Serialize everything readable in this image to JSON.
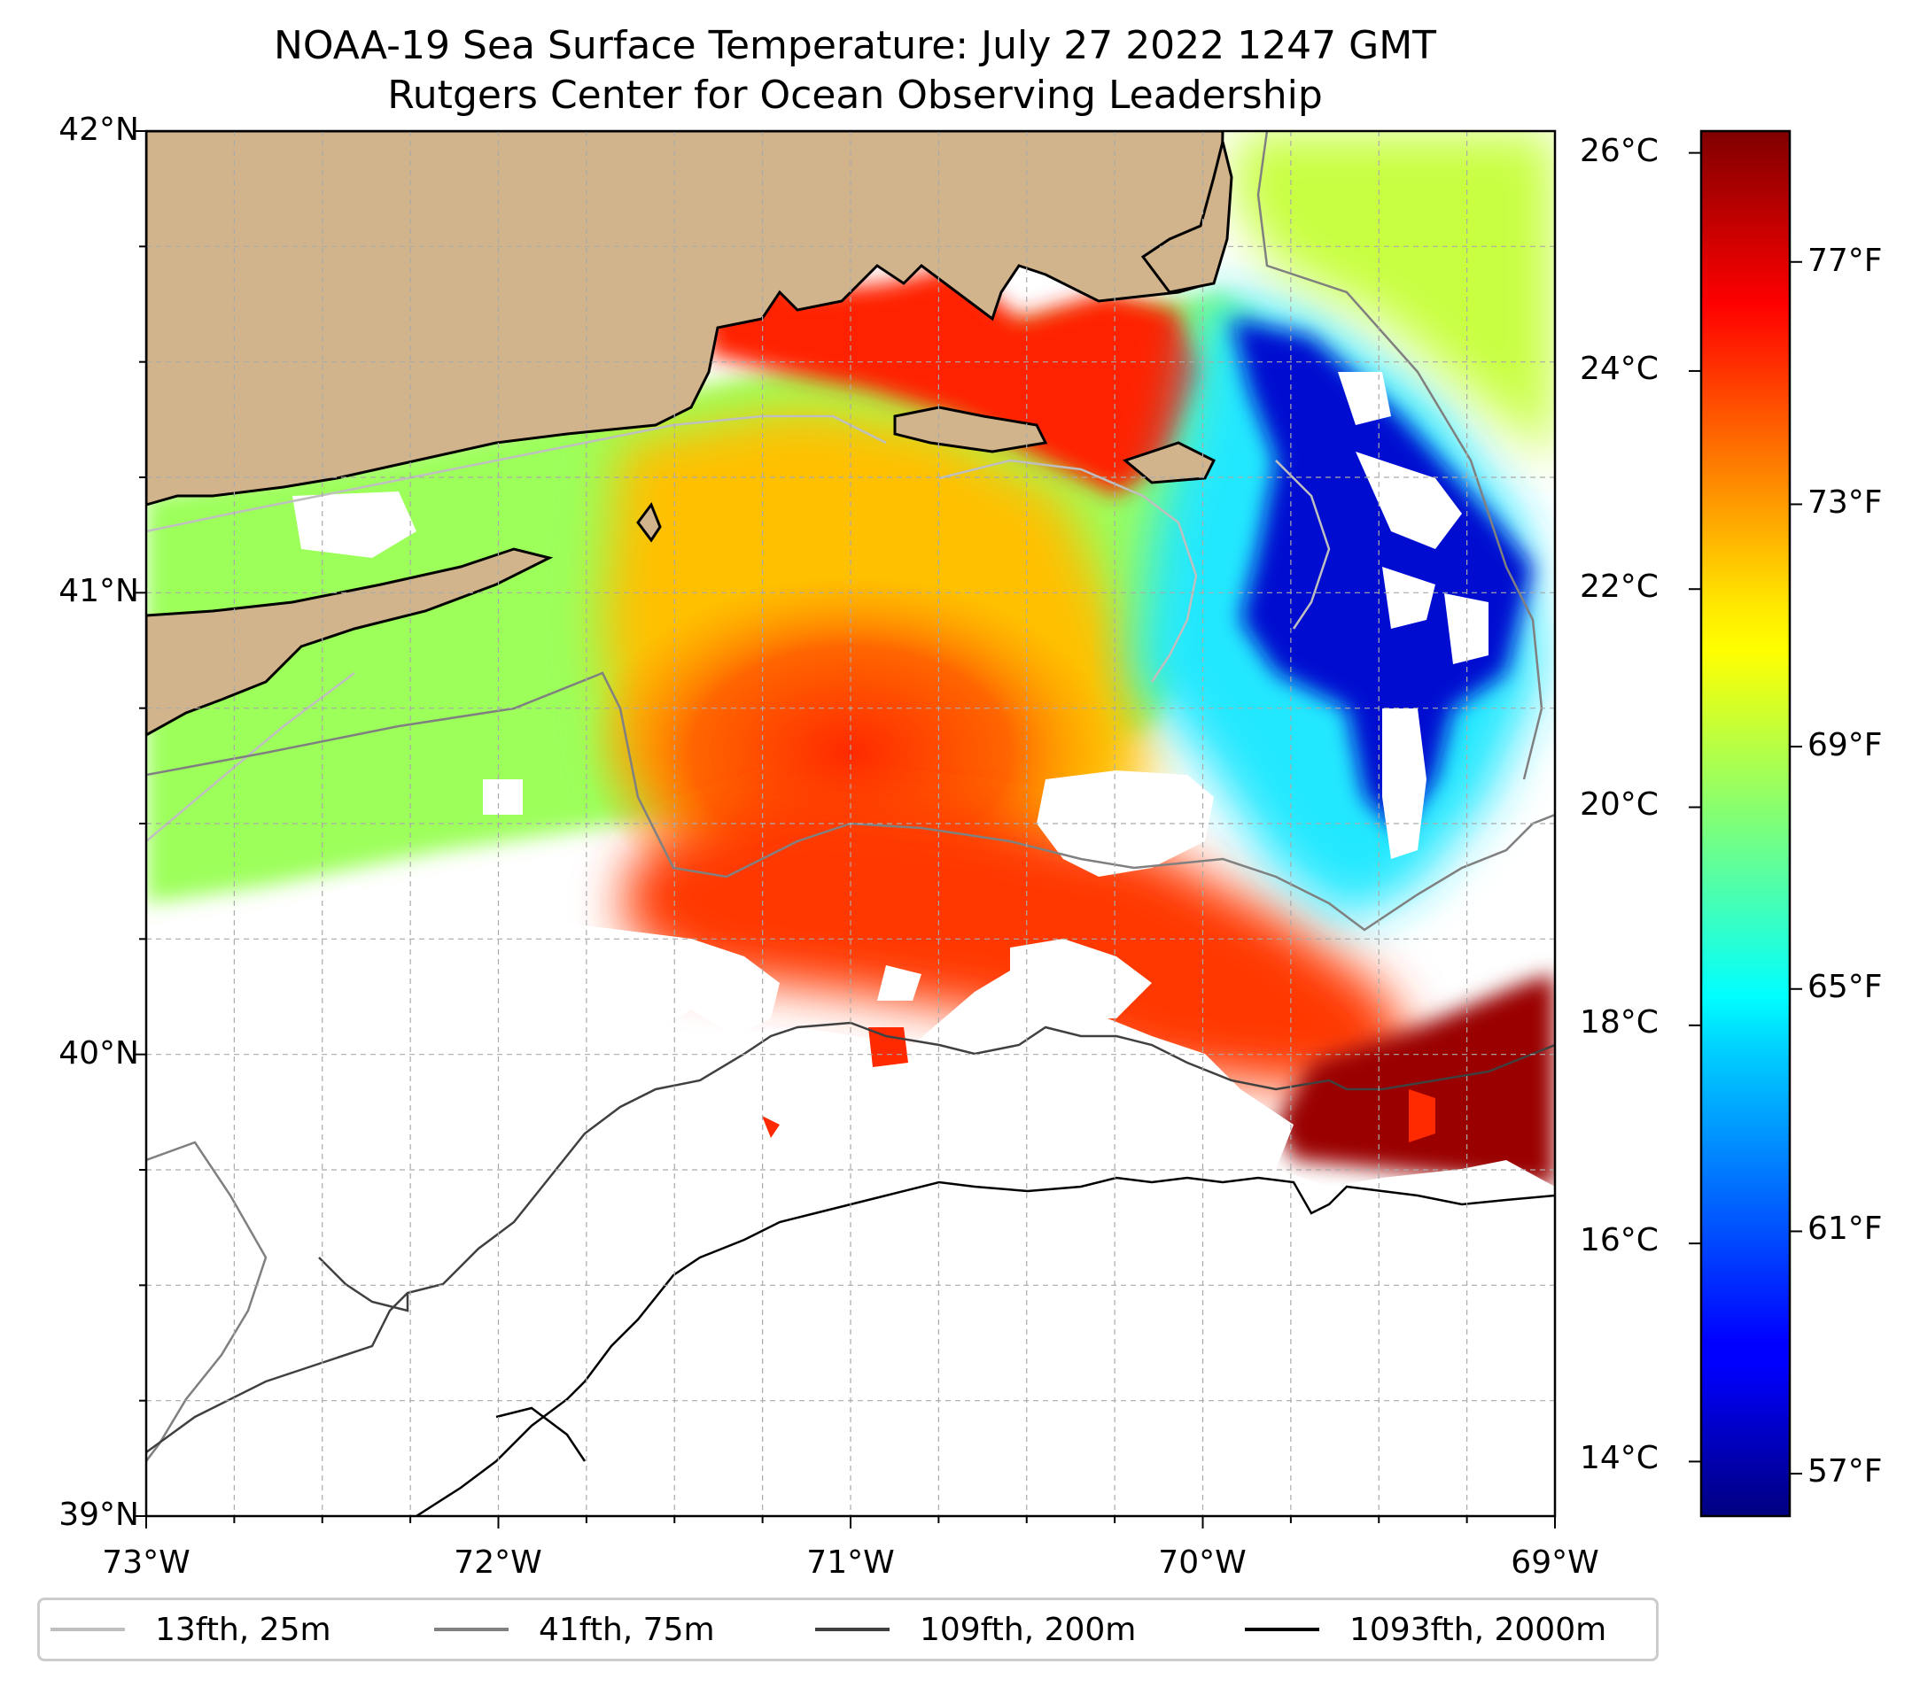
{
  "title": {
    "line1": "NOAA-19 Sea Surface Temperature: July 27 2022 1247 GMT",
    "line2": "Rutgers Center for Ocean Observing Leadership"
  },
  "map": {
    "lon_range": [
      -73,
      -69
    ],
    "lat_range": [
      39,
      42
    ],
    "gridlines": true,
    "lon_ticks": [
      {
        "value": -73,
        "label": "73°W"
      },
      {
        "value": -72,
        "label": "72°W"
      },
      {
        "value": -71,
        "label": "71°W"
      },
      {
        "value": -70,
        "label": "70°W"
      },
      {
        "value": -69,
        "label": "69°W"
      }
    ],
    "lat_ticks": [
      {
        "value": 42,
        "label": "42°N"
      },
      {
        "value": 41,
        "label": "41°N"
      },
      {
        "value": 40,
        "label": "40°N"
      },
      {
        "value": 39,
        "label": "39°N"
      }
    ],
    "colors": {
      "land": "#d2b48c",
      "coastline": "#000000",
      "no_data": "#ffffff"
    }
  },
  "colorbar": {
    "colormap": "jet",
    "range_celsius": [
      13.5,
      26.2
    ],
    "celsius_ticks": [
      {
        "value": 26,
        "label": "26°C"
      },
      {
        "value": 24,
        "label": "24°C"
      },
      {
        "value": 22,
        "label": "22°C"
      },
      {
        "value": 20,
        "label": "20°C"
      },
      {
        "value": 18,
        "label": "18°C"
      },
      {
        "value": 16,
        "label": "16°C"
      },
      {
        "value": 14,
        "label": "14°C"
      }
    ],
    "fahrenheit_ticks": [
      {
        "value": 77,
        "label": "77°F"
      },
      {
        "value": 73,
        "label": "73°F"
      },
      {
        "value": 69,
        "label": "69°F"
      },
      {
        "value": 65,
        "label": "65°F"
      },
      {
        "value": 61,
        "label": "61°F"
      },
      {
        "value": 57,
        "label": "57°F"
      }
    ]
  },
  "legend": {
    "placement": "below",
    "entries": [
      {
        "label": "13fth, 25m",
        "color": "#bfbfbf"
      },
      {
        "label": "41fth, 75m",
        "color": "#808080"
      },
      {
        "label": "109fth, 200m",
        "color": "#404040"
      },
      {
        "label": "1093fth, 2000m",
        "color": "#000000"
      }
    ]
  }
}
